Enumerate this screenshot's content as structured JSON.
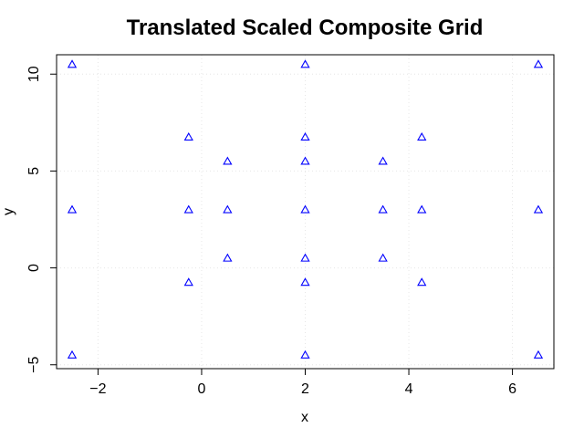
{
  "chart_data": {
    "type": "scatter",
    "title": "Translated Scaled Composite Grid",
    "xlabel": "x",
    "ylabel": "y",
    "xlim": [
      -2.8,
      6.8
    ],
    "ylim": [
      -5.2,
      11.0
    ],
    "xticks": [
      -2,
      0,
      2,
      4,
      6
    ],
    "yticks": [
      -5,
      0,
      5,
      10
    ],
    "x_tick_labels": [
      "−2",
      "0",
      "2",
      "4",
      "6"
    ],
    "y_tick_labels": [
      "−5",
      "0",
      "5",
      "10"
    ],
    "grid": true,
    "marker": "triangle",
    "color": "#0000ff",
    "x": [
      -2.5,
      2,
      6.5,
      -0.25,
      2,
      4.25,
      0.5,
      2,
      3.5,
      -2.5,
      -0.25,
      0.5,
      2,
      3.5,
      4.25,
      6.5,
      0.5,
      2,
      3.5,
      -0.25,
      2,
      4.25,
      -2.5,
      2,
      6.5
    ],
    "y": [
      10.5,
      10.5,
      10.5,
      6.75,
      6.75,
      6.75,
      5.5,
      5.5,
      5.5,
      3,
      3,
      3,
      3,
      3,
      3,
      3,
      0.5,
      0.5,
      0.5,
      -0.75,
      -0.75,
      -0.75,
      -4.5,
      -4.5,
      -4.5
    ]
  }
}
